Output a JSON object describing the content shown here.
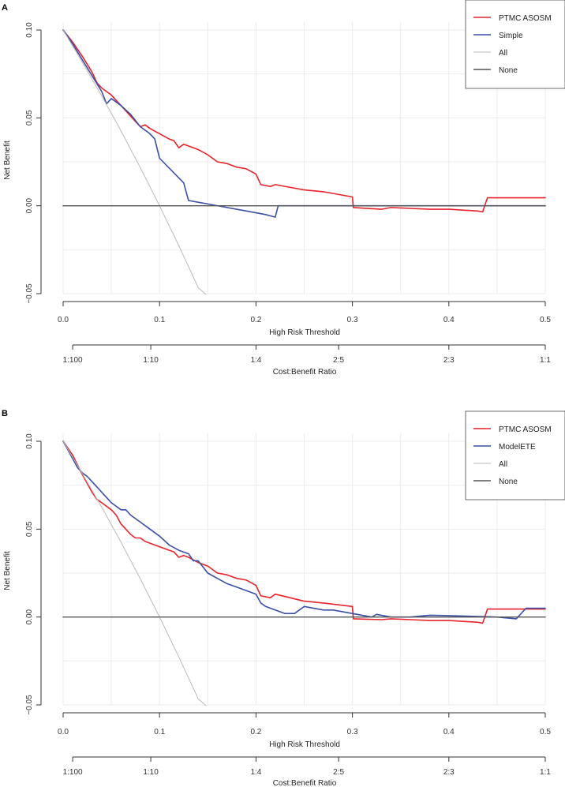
{
  "chart_data": [
    {
      "panel": "A",
      "type": "line",
      "title": "",
      "xlabel": "High Risk Threshold",
      "ylabel": "Net Benefit",
      "secondary_xlabel": "Cost:Benefit Ratio",
      "xlim": [
        0,
        0.5
      ],
      "ylim": [
        -0.05,
        0.1
      ],
      "x_ticks": [
        "0.0",
        "0.1",
        "0.2",
        "0.3",
        "0.4",
        "0.5"
      ],
      "x_tick_values": [
        0,
        0.1,
        0.2,
        0.3,
        0.4,
        0.5
      ],
      "y_ticks": [
        "0.10",
        "0.05",
        "0.00",
        "−0.05"
      ],
      "y_tick_values": [
        0.1,
        0.05,
        0,
        -0.05
      ],
      "ratio_ticks": [
        "1:100",
        "1:10",
        "1:4",
        "2:5",
        "2:3",
        "1:1"
      ],
      "ratio_tick_values": [
        0.0099,
        0.0909,
        0.2,
        0.2857,
        0.4,
        0.5
      ],
      "legend_position": "top-right",
      "grid": true,
      "series": [
        {
          "name": "PTMC ASOSM",
          "color": "#e8232a",
          "width": 1.6,
          "x": [
            0,
            0.01,
            0.02,
            0.03,
            0.035,
            0.04,
            0.05,
            0.055,
            0.06,
            0.07,
            0.075,
            0.08,
            0.085,
            0.09,
            0.1,
            0.11,
            0.115,
            0.12,
            0.125,
            0.13,
            0.14,
            0.15,
            0.16,
            0.17,
            0.18,
            0.19,
            0.2,
            0.205,
            0.215,
            0.22,
            0.25,
            0.27,
            0.3,
            0.301,
            0.33,
            0.34,
            0.36,
            0.38,
            0.4,
            0.43,
            0.435,
            0.44,
            0.5
          ],
          "y": [
            0.1,
            0.093,
            0.085,
            0.076,
            0.07,
            0.067,
            0.063,
            0.06,
            0.057,
            0.051,
            0.048,
            0.045,
            0.046,
            0.044,
            0.041,
            0.038,
            0.037,
            0.033,
            0.035,
            0.034,
            0.032,
            0.029,
            0.025,
            0.024,
            0.022,
            0.021,
            0.018,
            0.012,
            0.011,
            0.012,
            0.009,
            0.008,
            0.005,
            -0.001,
            -0.002,
            -0.001,
            -0.0015,
            -0.002,
            -0.002,
            -0.003,
            -0.0035,
            0.0045,
            0.0045
          ]
        },
        {
          "name": "Simple",
          "color": "#3a4fa8",
          "width": 1.6,
          "x": [
            0,
            0.01,
            0.02,
            0.03,
            0.04,
            0.045,
            0.05,
            0.06,
            0.07,
            0.08,
            0.09,
            0.095,
            0.1,
            0.125,
            0.13,
            0.15,
            0.17,
            0.19,
            0.21,
            0.22,
            0.223,
            0.25,
            0.3,
            0.4,
            0.5
          ],
          "y": [
            0.1,
            0.092,
            0.083,
            0.074,
            0.065,
            0.058,
            0.061,
            0.057,
            0.052,
            0.045,
            0.041,
            0.038,
            0.027,
            0.013,
            0.003,
            0.001,
            -0.001,
            -0.003,
            -0.005,
            -0.0065,
            0,
            0,
            0,
            0,
            0
          ]
        },
        {
          "name": "All",
          "color": "#b9b9b9",
          "width": 1,
          "x": [
            0,
            0.02,
            0.04,
            0.06,
            0.08,
            0.1,
            0.12,
            0.14,
            0.148
          ],
          "y": [
            0.1,
            0.0816,
            0.0625,
            0.0426,
            0.0217,
            0.0,
            -0.0227,
            -0.0465,
            -0.0504
          ]
        },
        {
          "name": "None",
          "color": "#555555",
          "width": 1.4,
          "x": [
            0,
            0.5
          ],
          "y": [
            0,
            0
          ]
        }
      ]
    },
    {
      "panel": "B",
      "type": "line",
      "title": "",
      "xlabel": "High Risk Threshold",
      "ylabel": "Net Benefit",
      "secondary_xlabel": "Cost:Benefit Ratio",
      "xlim": [
        0,
        0.5
      ],
      "ylim": [
        -0.05,
        0.1
      ],
      "x_ticks": [
        "0.0",
        "0.1",
        "0.2",
        "0.3",
        "0.4",
        "0.5"
      ],
      "x_tick_values": [
        0,
        0.1,
        0.2,
        0.3,
        0.4,
        0.5
      ],
      "y_ticks": [
        "0.10",
        "0.05",
        "0.00",
        "−0.05"
      ],
      "y_tick_values": [
        0.1,
        0.05,
        0,
        -0.05
      ],
      "ratio_ticks": [
        "1:100",
        "1:10",
        "1:4",
        "2:5",
        "2:3",
        "1:1"
      ],
      "ratio_tick_values": [
        0.0099,
        0.0909,
        0.2,
        0.2857,
        0.4,
        0.5
      ],
      "legend_position": "top-right",
      "grid": true,
      "series": [
        {
          "name": "PTMC ASOSM",
          "color": "#e8232a",
          "width": 1.6,
          "x": [
            0,
            0.01,
            0.02,
            0.03,
            0.035,
            0.04,
            0.05,
            0.055,
            0.06,
            0.07,
            0.075,
            0.08,
            0.085,
            0.09,
            0.1,
            0.11,
            0.115,
            0.12,
            0.125,
            0.13,
            0.14,
            0.15,
            0.16,
            0.17,
            0.18,
            0.19,
            0.2,
            0.205,
            0.215,
            0.22,
            0.25,
            0.27,
            0.3,
            0.301,
            0.33,
            0.34,
            0.36,
            0.38,
            0.4,
            0.43,
            0.435,
            0.44,
            0.5
          ],
          "y": [
            0.1,
            0.092,
            0.081,
            0.071,
            0.067,
            0.065,
            0.061,
            0.058,
            0.053,
            0.047,
            0.045,
            0.045,
            0.043,
            0.042,
            0.04,
            0.038,
            0.037,
            0.034,
            0.035,
            0.034,
            0.031,
            0.029,
            0.025,
            0.024,
            0.022,
            0.021,
            0.018,
            0.012,
            0.011,
            0.013,
            0.009,
            0.008,
            0.006,
            -0.001,
            -0.0015,
            -0.001,
            -0.0015,
            -0.002,
            -0.002,
            -0.003,
            -0.0035,
            0.0045,
            0.0045
          ]
        },
        {
          "name": "ModelETE",
          "color": "#3a4fa8",
          "width": 1.6,
          "x": [
            0,
            0.01,
            0.015,
            0.02,
            0.025,
            0.03,
            0.04,
            0.05,
            0.06,
            0.065,
            0.07,
            0.08,
            0.09,
            0.1,
            0.11,
            0.12,
            0.13,
            0.135,
            0.14,
            0.15,
            0.16,
            0.17,
            0.18,
            0.19,
            0.2,
            0.205,
            0.21,
            0.22,
            0.23,
            0.24,
            0.25,
            0.27,
            0.28,
            0.3,
            0.32,
            0.325,
            0.34,
            0.36,
            0.38,
            0.4,
            0.45,
            0.47,
            0.48,
            0.5
          ],
          "y": [
            0.1,
            0.09,
            0.085,
            0.082,
            0.08,
            0.077,
            0.071,
            0.065,
            0.061,
            0.061,
            0.058,
            0.054,
            0.05,
            0.046,
            0.041,
            0.038,
            0.036,
            0.032,
            0.032,
            0.025,
            0.022,
            0.019,
            0.017,
            0.015,
            0.013,
            0.008,
            0.006,
            0.004,
            0.002,
            0.002,
            0.006,
            0.004,
            0.004,
            0.002,
            0.0,
            0.0015,
            0.0,
            0.0,
            0.001,
            0.0008,
            0.0,
            -0.001,
            0.005,
            0.005
          ]
        },
        {
          "name": "All",
          "color": "#b9b9b9",
          "width": 1,
          "x": [
            0,
            0.02,
            0.04,
            0.06,
            0.08,
            0.1,
            0.12,
            0.14,
            0.148
          ],
          "y": [
            0.1,
            0.0816,
            0.0625,
            0.0426,
            0.0217,
            0.0,
            -0.0227,
            -0.0465,
            -0.0504
          ]
        },
        {
          "name": "None",
          "color": "#555555",
          "width": 1.4,
          "x": [
            0,
            0.5
          ],
          "y": [
            0,
            0
          ]
        }
      ]
    }
  ]
}
